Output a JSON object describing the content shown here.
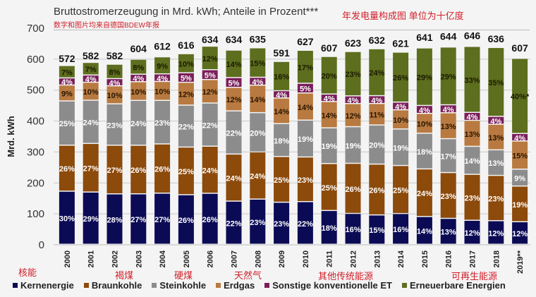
{
  "title": "Bruttostromerzeugung in Mrd. kWh; Anteile in Prozent***",
  "subnote": "数字和图片均来自德国BDEW年报",
  "cn_title": "年发电量构成图 单位为十亿度",
  "cn_labels": {
    "kernenergie": "核能",
    "braunkohle": "褐煤",
    "steinkohle": "硬煤",
    "erdgas": "天然气",
    "sonstige": "其他传统能源",
    "erneuerbare": "可再生能源"
  },
  "chart_data": {
    "type": "bar",
    "stacked": true,
    "title": "Bruttostromerzeugung in Mrd. kWh; Anteile in Prozent***",
    "xlabel": "",
    "ylabel": "Mrd. kWh",
    "ylim": [
      0,
      700
    ],
    "yticks": [
      0,
      100,
      200,
      300,
      400,
      500,
      600,
      700
    ],
    "grid": true,
    "legend_position": "bottom",
    "categories": [
      "2000",
      "2001",
      "2002",
      "2003",
      "2004",
      "2005",
      "2006",
      "2007",
      "2008",
      "2009",
      "2010",
      "2011",
      "2012",
      "2013",
      "2014",
      "2015",
      "2016",
      "2017",
      "2018",
      "2019**"
    ],
    "totals": [
      572,
      582,
      582,
      604,
      612,
      616,
      634,
      634,
      635,
      591,
      627,
      607,
      623,
      632,
      621,
      641,
      644,
      646,
      636,
      607
    ],
    "series": [
      {
        "name": "Kernenergie",
        "color": "#0b0b55",
        "label_color": "#ffffff",
        "values": [
          30,
          29,
          28,
          27,
          27,
          26,
          26,
          22,
          23,
          23,
          22,
          18,
          16,
          15,
          16,
          14,
          13,
          12,
          12,
          12
        ]
      },
      {
        "name": "Braunkohle",
        "color": "#8c4a0b",
        "label_color": "#ffffff",
        "values": [
          26,
          27,
          27,
          26,
          26,
          25,
          24,
          24,
          24,
          25,
          23,
          25,
          26,
          26,
          25,
          24,
          23,
          23,
          23,
          19
        ]
      },
      {
        "name": "Steinkohle",
        "color": "#8c8c8c",
        "label_color": "#ffffff",
        "values": [
          25,
          24,
          23,
          24,
          23,
          22,
          22,
          22,
          20,
          18,
          19,
          19,
          19,
          20,
          19,
          18,
          17,
          14,
          13,
          9
        ]
      },
      {
        "name": "Erdgas",
        "color": "#b87a40",
        "label_color": "#2a1500",
        "values": [
          9,
          10,
          10,
          10,
          10,
          12,
          12,
          12,
          14,
          14,
          14,
          14,
          12,
          11,
          10,
          10,
          13,
          13,
          13,
          15
        ]
      },
      {
        "name": "Sonstige konventionelle ET",
        "color": "#7a1e5a",
        "label_color": "#ffffff",
        "values": [
          4,
          4,
          4,
          4,
          4,
          5,
          5,
          5,
          4,
          4,
          5,
          4,
          4,
          4,
          4,
          4,
          4,
          4,
          4,
          4
        ]
      },
      {
        "name": "Erneuerbare Energien",
        "color": "#5d6e1e",
        "label_color": "#1a1a00",
        "values": [
          7,
          7,
          8,
          8,
          9,
          10,
          12,
          14,
          15,
          16,
          17,
          20,
          23,
          24,
          26,
          29,
          29,
          33,
          35,
          40
        ],
        "last_label_suffix": "*"
      }
    ]
  }
}
